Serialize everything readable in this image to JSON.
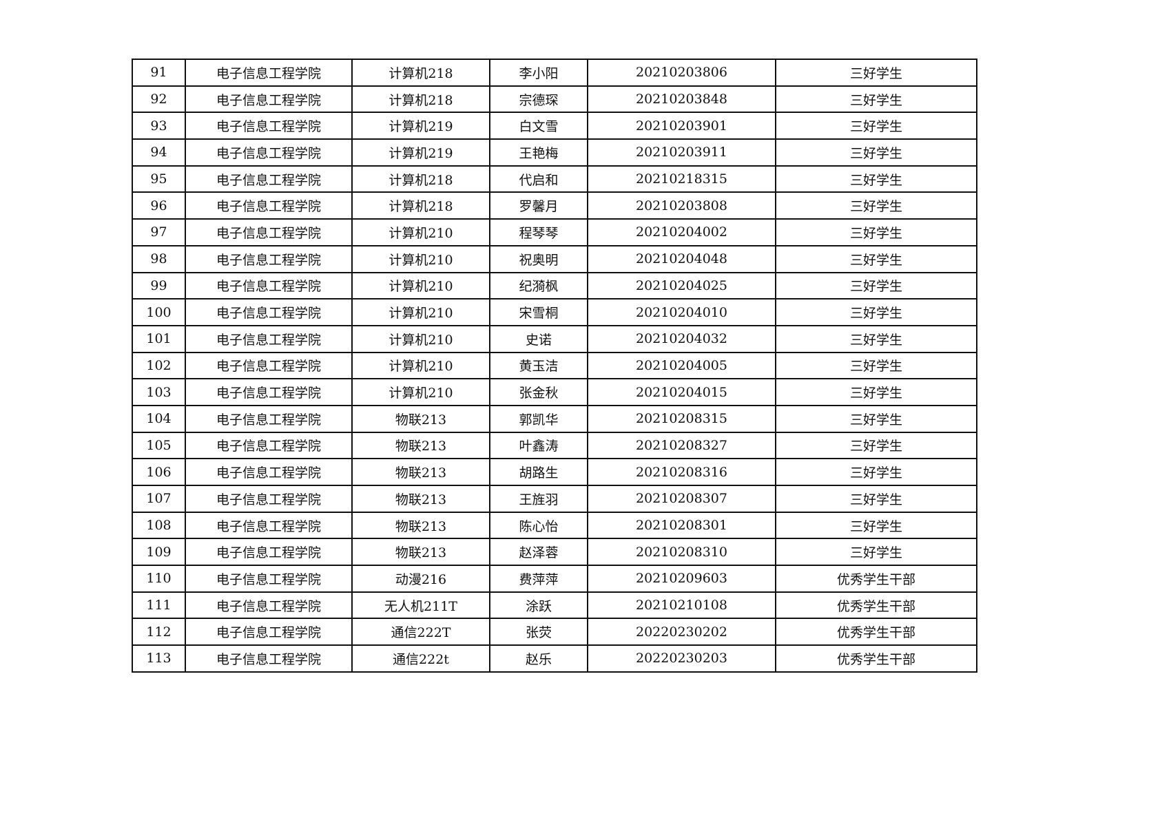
{
  "rows": [
    [
      "91",
      "电子信息工程学院",
      "计算机218",
      "李小阳",
      "20210203806",
      "三好学生"
    ],
    [
      "92",
      "电子信息工程学院",
      "计算机218",
      "宗德琛",
      "20210203848",
      "三好学生"
    ],
    [
      "93",
      "电子信息工程学院",
      "计算机219",
      "白文雪",
      "20210203901",
      "三好学生"
    ],
    [
      "94",
      "电子信息工程学院",
      "计算机219",
      "王艳梅",
      "20210203911",
      "三好学生"
    ],
    [
      "95",
      "电子信息工程学院",
      "计算机218",
      "代启和",
      "20210218315",
      "三好学生"
    ],
    [
      "96",
      "电子信息工程学院",
      "计算机218",
      "罗馨月",
      "20210203808",
      "三好学生"
    ],
    [
      "97",
      "电子信息工程学院",
      "计算机210",
      "程琴琴",
      "20210204002",
      "三好学生"
    ],
    [
      "98",
      "电子信息工程学院",
      "计算机210",
      "祝奥明",
      "20210204048",
      "三好学生"
    ],
    [
      "99",
      "电子信息工程学院",
      "计算机210",
      "纪漪枫",
      "20210204025",
      "三好学生"
    ],
    [
      "100",
      "电子信息工程学院",
      "计算机210",
      "宋雪桐",
      "20210204010",
      "三好学生"
    ],
    [
      "101",
      "电子信息工程学院",
      "计算机210",
      "史诺",
      "20210204032",
      "三好学生"
    ],
    [
      "102",
      "电子信息工程学院",
      "计算机210",
      "黄玉洁",
      "20210204005",
      "三好学生"
    ],
    [
      "103",
      "电子信息工程学院",
      "计算机210",
      "张金秋",
      "20210204015",
      "三好学生"
    ],
    [
      "104",
      "电子信息工程学院",
      "物联213",
      "郭凯华",
      "20210208315",
      "三好学生"
    ],
    [
      "105",
      "电子信息工程学院",
      "物联213",
      "叶鑫涛",
      "20210208327",
      "三好学生"
    ],
    [
      "106",
      "电子信息工程学院",
      "物联213",
      "胡路生",
      "20210208316",
      "三好学生"
    ],
    [
      "107",
      "电子信息工程学院",
      "物联213",
      "王旌羽",
      "20210208307",
      "三好学生"
    ],
    [
      "108",
      "电子信息工程学院",
      "物联213",
      "陈心怡",
      "20210208301",
      "三好学生"
    ],
    [
      "109",
      "电子信息工程学院",
      "物联213",
      "赵泽蓉",
      "20210208310",
      "三好学生"
    ],
    [
      "110",
      "电子信息工程学院",
      "动漫216",
      "费萍萍",
      "20210209603",
      "优秀学生干部"
    ],
    [
      "111",
      "电子信息工程学院",
      "无人机211T",
      "涂跃",
      "20210210108",
      "优秀学生干部"
    ],
    [
      "112",
      "电子信息工程学院",
      "通信222T",
      "张荧",
      "20220230202",
      "优秀学生干部"
    ],
    [
      "113",
      "电子信息工程学院",
      "通信222t",
      "赵乐",
      "20220230203",
      "优秀学生干部"
    ]
  ]
}
